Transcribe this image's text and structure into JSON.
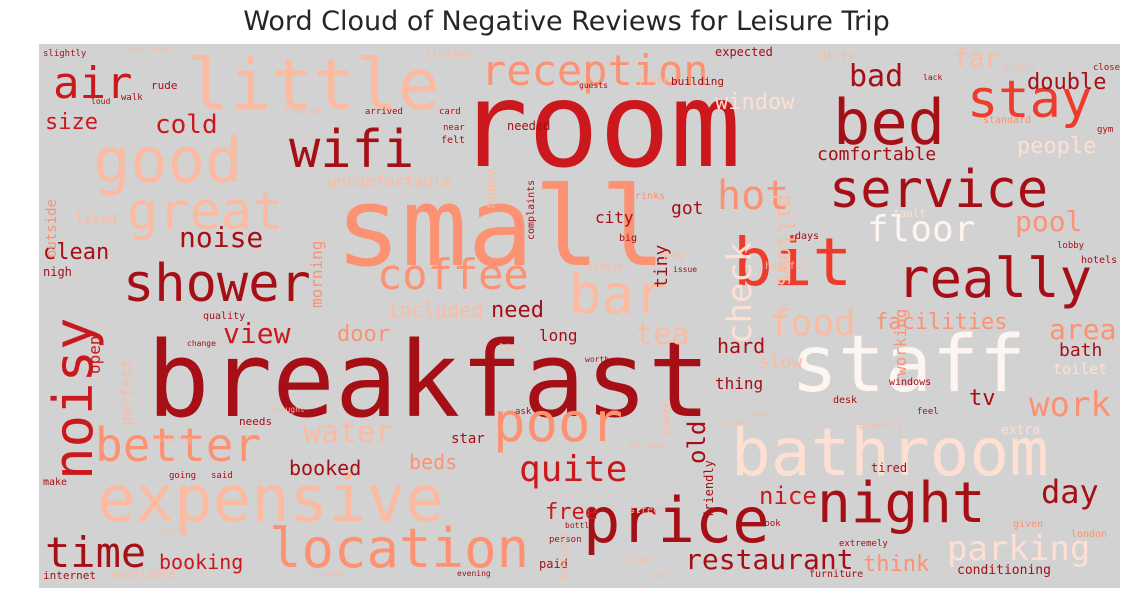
{
  "title": "Word Cloud of Negative Reviews for Leisure Trip",
  "colors": {
    "background": "#d2d2d2",
    "dark_red": "#a50f15",
    "red": "#cb181d",
    "mid_red": "#ef3b2c",
    "salmon": "#fc9272",
    "light_salmon": "#fcbba1",
    "pale": "#fee0d2",
    "white": "#fff5f0"
  },
  "words": {
    "breakfast": "breakfast",
    "room": "room",
    "small": "small",
    "staff": "staff",
    "bathroom": "bathroom",
    "expensive": "expensive",
    "little": "little",
    "good": "good",
    "bed": "bed",
    "price": "price",
    "night": "night",
    "location": "location",
    "bit": "bit",
    "service": "service",
    "shower": "shower",
    "noisy": "noisy",
    "poor": "poor",
    "really": "really",
    "stay": "stay",
    "better": "better",
    "great": "great",
    "wifi": "wifi",
    "coffee": "coffee",
    "bar": "bar",
    "air": "air",
    "reception": "reception",
    "time": "time",
    "hot": "hot",
    "floor": "floor",
    "food": "food",
    "check": "check",
    "parking": "parking",
    "quite": "quite",
    "noise": "noise",
    "view": "view",
    "water": "water",
    "work": "work",
    "day": "day",
    "bad": "bad",
    "restaurant": "restaurant",
    "cold": "cold",
    "double": "double",
    "size": "size",
    "pool": "pool",
    "area": "area",
    "tea": "tea",
    "nice": "nice",
    "facilities": "facilities",
    "booking": "booking",
    "free": "free",
    "old": "old",
    "clean": "clean",
    "comfortable": "comfortable",
    "people": "people",
    "pillows": "pillows",
    "window": "window",
    "uncomfortable": "uncomfortable",
    "included": "included",
    "door": "door",
    "need": "need",
    "hard": "hard",
    "booked": "booked",
    "beds": "beds",
    "think": "think",
    "tv": "tv",
    "bath": "bath",
    "toilet": "toilet",
    "far": "far",
    "got": "got",
    "tiny": "tiny",
    "long": "long",
    "city": "city",
    "morning": "morning",
    "outside": "outside",
    "perfect": "perfect",
    "open": "open",
    "working": "working",
    "slow": "slow",
    "thing": "thing",
    "star": "star",
    "money": "money",
    "liked": "liked",
    "nigh": "nigh",
    "conditioning": "conditioning",
    "friendly": "friendly",
    "paid": "paid",
    "available": "available",
    "internet": "internet",
    "make": "make",
    "extra": "extra",
    "needs": "needs",
    "needed": "needed",
    "building": "building",
    "expected": "expected",
    "dirty": "dirty",
    "limited": "limited",
    "slightly": "slightly",
    "excellent": "excellent",
    "rude": "rude",
    "walk": "walk",
    "complaints": "complaints",
    "drinks": "drinks",
    "big": "big",
    "pay": "pay",
    "single": "single",
    "lift": "lift",
    "quality": "quality",
    "helpful": "helpful",
    "fault": "fault",
    "days": "days",
    "lobby": "lobby",
    "hotels": "hotels",
    "desk": "desk",
    "windows": "windows",
    "tired": "tired",
    "london": "london",
    "given": "given",
    "street": "street",
    "furniture": "furniture",
    "arrival": "arrival",
    "standard": "standard",
    "place": "place",
    "bedroom": "bedroom",
    "arrived": "arrived",
    "card": "card",
    "felt": "felt",
    "near": "near",
    "guests": "guests",
    "lack": "lack",
    "closed": "closed",
    "nights": "nights",
    "gym": "gym",
    "early": "early",
    "going": "going",
    "said": "said",
    "person": "person",
    "close": "close",
    "evening": "evening",
    "inside": "inside",
    "wall": "wall",
    "look": "look",
    "extremely": "extremely",
    "ask": "ask",
    "worth": "worth",
    "bottle": "bottle",
    "stayed": "stayed",
    "properly": "properly",
    "saw": "saw",
    "feel": "feel",
    "cleaning": "cleaning",
    "change": "change",
    "thought": "thought",
    "sleep": "sleep",
    "issue": "issue",
    "loud": "loud",
    "difficult": "difficult"
  }
}
